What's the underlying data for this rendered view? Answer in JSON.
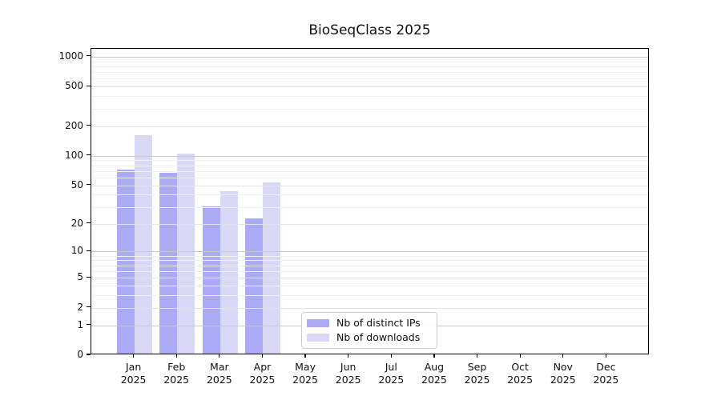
{
  "chart_data": {
    "type": "bar",
    "title": "BioSeqClass 2025",
    "categories": [
      "Jan",
      "Feb",
      "Mar",
      "Apr",
      "May",
      "Jun",
      "Jul",
      "Aug",
      "Sep",
      "Oct",
      "Nov",
      "Dec"
    ],
    "category_year": "2025",
    "series": [
      {
        "name": "Nb of distinct IPs",
        "color": "#aaaaf5",
        "values": [
          70,
          65,
          29,
          22,
          0,
          0,
          0,
          0,
          0,
          0,
          0,
          0
        ]
      },
      {
        "name": "Nb of downloads",
        "color": "#d9d9f7",
        "values": [
          155,
          102,
          42,
          52,
          0,
          0,
          0,
          0,
          0,
          0,
          0,
          0
        ]
      }
    ],
    "y_scale": "log1p",
    "ylim": [
      0,
      1200
    ],
    "y_ticks": [
      0,
      1,
      2,
      5,
      10,
      20,
      50,
      100,
      200,
      500,
      1000
    ],
    "y_major_ticks": [
      1,
      10,
      100,
      1000
    ],
    "y_minor_gridlines": [
      3,
      4,
      6,
      7,
      8,
      9,
      30,
      40,
      60,
      70,
      80,
      90,
      300,
      400,
      600,
      700,
      800,
      900
    ],
    "grid": "horizontal",
    "legend_position": "inside-bottom-center",
    "colors": {
      "major_grid": "#c9c9c9",
      "labeled_grid": "#e2e2e2",
      "minor_grid": "#f0f0f0",
      "axis": "#000000"
    }
  }
}
